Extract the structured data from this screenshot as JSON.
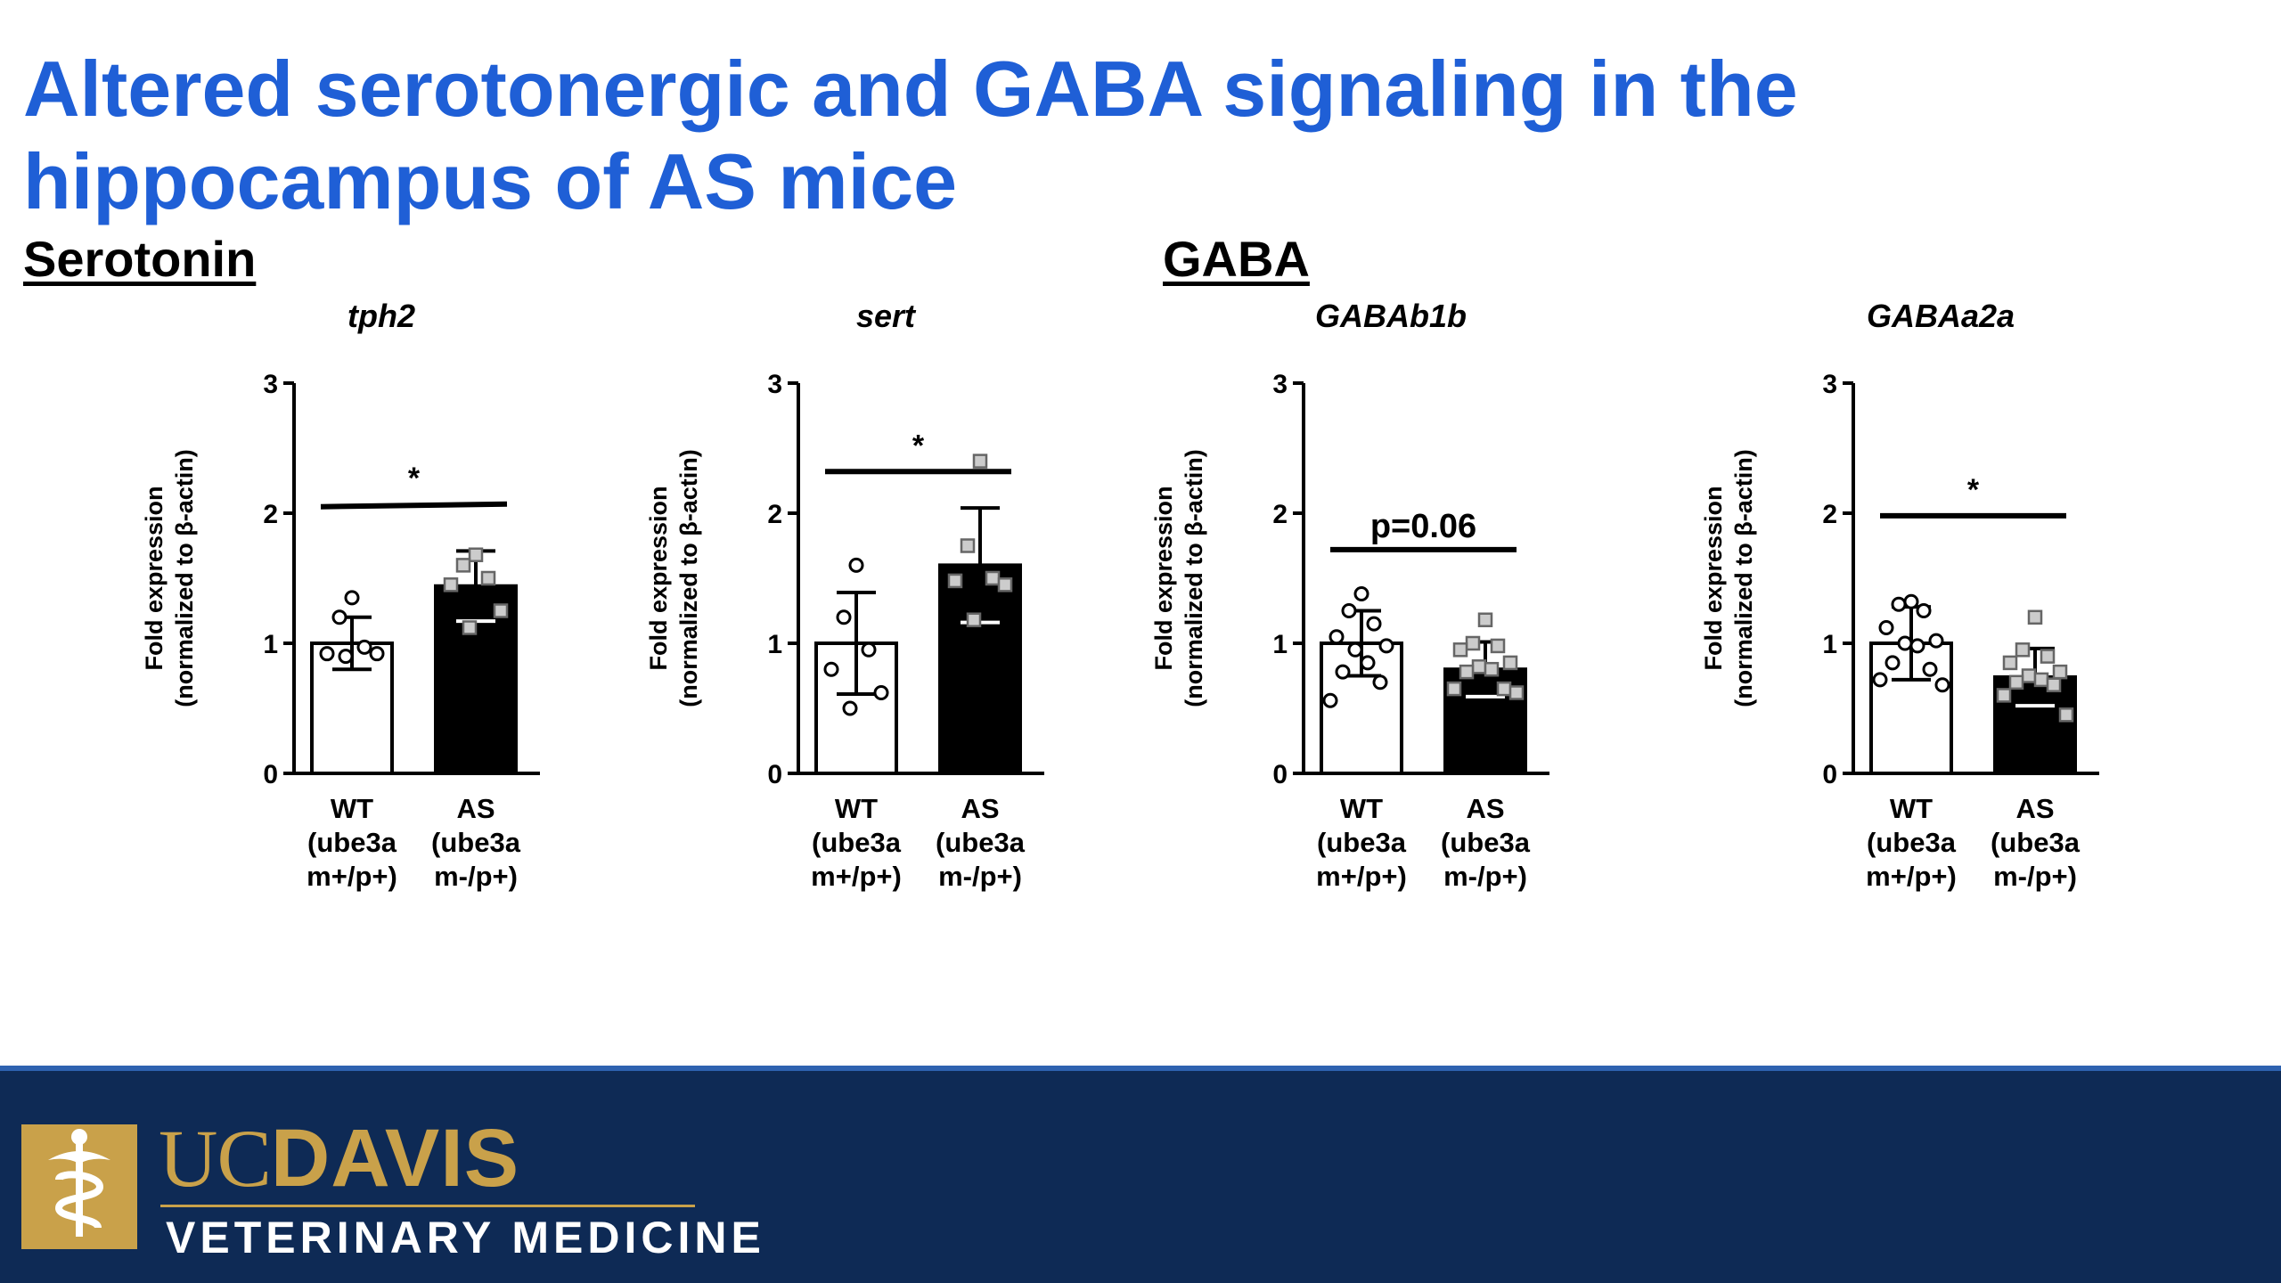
{
  "slide": {
    "title_line1": "Altered serotonergic and GABA signaling in the",
    "title_line2": "hippocampus of AS mice",
    "section_left": "Serotonin",
    "section_right": "GABA"
  },
  "footer": {
    "brand_uc": "UC",
    "brand_davis": "DAVIS",
    "brand_sub": "VETERINARY MEDICINE",
    "brand_color": "#c9a14a",
    "background_color": "#0e2a55"
  },
  "colors": {
    "title": "#1f5fd6",
    "wt_bar": "#ffffff",
    "as_bar": "#000000",
    "as_marker_fill": "#cccccc"
  },
  "chart_data": [
    {
      "type": "bar",
      "title": "tph2",
      "ylabel_line1": "Fold expression",
      "ylabel_line2": "(normalized to β-actin)",
      "ylim": [
        0,
        3
      ],
      "yticks": [
        "0",
        "1",
        "2",
        "3"
      ],
      "categories": [
        {
          "lines": [
            "WT",
            "(ube3a",
            "m+/p+)"
          ]
        },
        {
          "lines": [
            "AS",
            "(ube3a",
            "m-/p+)"
          ]
        }
      ],
      "values": [
        1.0,
        1.44
      ],
      "errors": [
        0.2,
        0.27
      ],
      "points": [
        [
          1.35,
          1.2,
          0.97,
          0.92,
          0.92,
          0.9
        ],
        [
          1.68,
          1.6,
          1.5,
          1.45,
          1.25,
          1.12
        ]
      ],
      "marker": [
        "circle",
        "square"
      ],
      "significance": {
        "label": "*",
        "y": 2.05,
        "y2": 2.07
      }
    },
    {
      "type": "bar",
      "title": "sert",
      "ylabel_line1": "Fold expression",
      "ylabel_line2": "(normalized to β-actin)",
      "ylim": [
        0,
        3
      ],
      "yticks": [
        "0",
        "1",
        "2",
        "3"
      ],
      "categories": [
        {
          "lines": [
            "WT",
            "(ube3a",
            "m+/p+)"
          ]
        },
        {
          "lines": [
            "AS",
            "(ube3a",
            "m-/p+)"
          ]
        }
      ],
      "values": [
        1.0,
        1.6
      ],
      "errors": [
        0.39,
        0.44
      ],
      "points": [
        [
          1.6,
          1.2,
          0.95,
          0.8,
          0.62,
          0.5
        ],
        [
          2.4,
          1.75,
          1.5,
          1.48,
          1.45,
          1.18
        ]
      ],
      "marker": [
        "circle",
        "square"
      ],
      "significance": {
        "label": "*",
        "y": 2.32,
        "y2": 2.32
      }
    },
    {
      "type": "bar",
      "title": "GABAb1b",
      "ylabel_line1": "Fold expression",
      "ylabel_line2": "(normalized to β-actin)",
      "ylim": [
        0,
        3
      ],
      "yticks": [
        "0",
        "1",
        "2",
        "3"
      ],
      "categories": [
        {
          "lines": [
            "WT",
            "(ube3a",
            "m+/p+)"
          ]
        },
        {
          "lines": [
            "AS",
            "(ube3a",
            "m-/p+)"
          ]
        }
      ],
      "values": [
        1.0,
        0.8
      ],
      "errors": [
        0.25,
        0.21
      ],
      "points": [
        [
          1.38,
          1.25,
          1.15,
          1.05,
          0.98,
          0.95,
          0.85,
          0.78,
          0.7,
          0.56
        ],
        [
          1.18,
          1.0,
          0.98,
          0.95,
          0.85,
          0.82,
          0.8,
          0.78,
          0.65,
          0.65,
          0.62
        ]
      ],
      "marker": [
        "circle",
        "square"
      ],
      "significance": {
        "label": "p=0.06",
        "y": 1.72,
        "y2": 1.72
      }
    },
    {
      "type": "bar",
      "title": "GABAa2a",
      "ylabel_line1": "Fold expression",
      "ylabel_line2": "(normalized to β-actin)",
      "ylim": [
        0,
        3
      ],
      "yticks": [
        "0",
        "1",
        "2",
        "3"
      ],
      "categories": [
        {
          "lines": [
            "WT",
            "(ube3a",
            "m+/p+)"
          ]
        },
        {
          "lines": [
            "AS",
            "(ube3a",
            "m-/p+)"
          ]
        }
      ],
      "values": [
        1.0,
        0.74
      ],
      "errors": [
        0.28,
        0.22
      ],
      "points": [
        [
          1.32,
          1.3,
          1.25,
          1.12,
          1.02,
          1.0,
          0.98,
          0.85,
          0.8,
          0.72,
          0.68
        ],
        [
          1.2,
          0.95,
          0.9,
          0.85,
          0.78,
          0.75,
          0.72,
          0.7,
          0.68,
          0.6,
          0.45
        ]
      ],
      "marker": [
        "circle",
        "square"
      ],
      "significance": {
        "label": "*",
        "y": 1.98,
        "y2": 1.98
      }
    }
  ]
}
